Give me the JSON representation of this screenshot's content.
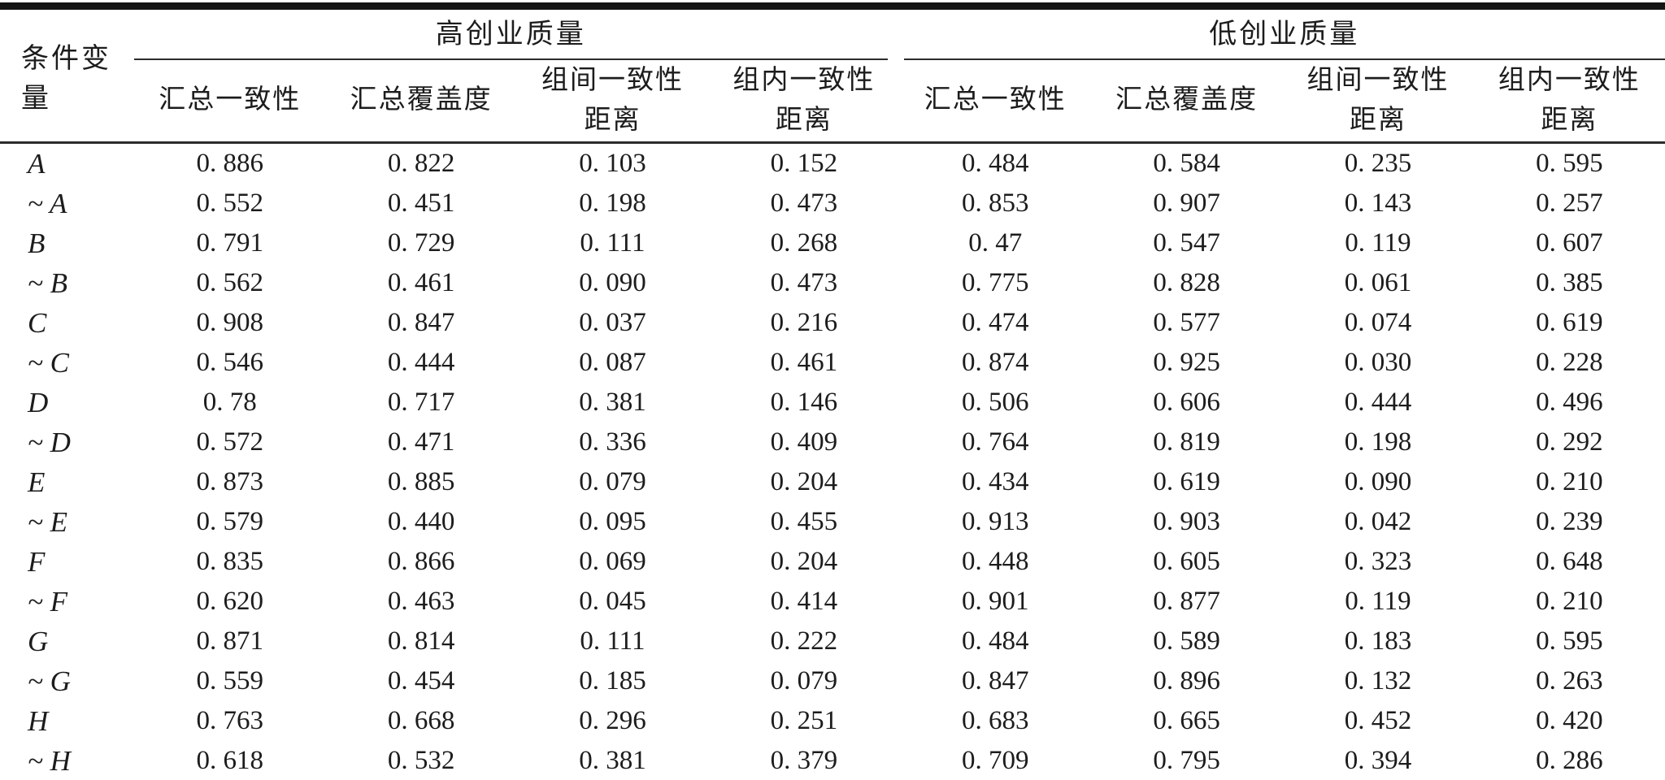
{
  "page": {
    "background": "#ffffff",
    "rule_color": "#151515",
    "text_color": "#1c1c1c"
  },
  "table": {
    "corner_header": "条件变量",
    "groups": [
      {
        "label": "高创业质量",
        "columns": [
          {
            "line1": "汇总一致性",
            "line2": ""
          },
          {
            "line1": "汇总覆盖度",
            "line2": ""
          },
          {
            "line1": "组间一致性",
            "line2": "距离"
          },
          {
            "line1": "组内一致性",
            "line2": "距离"
          }
        ]
      },
      {
        "label": "低创业质量",
        "columns": [
          {
            "line1": "汇总一致性",
            "line2": ""
          },
          {
            "line1": "汇总覆盖度",
            "line2": ""
          },
          {
            "line1": "组间一致性",
            "line2": "距离"
          },
          {
            "line1": "组内一致性",
            "line2": "距离"
          }
        ]
      }
    ],
    "rows": [
      {
        "label": "A",
        "values": [
          "0. 886",
          "0. 822",
          "0. 103",
          "0. 152",
          "0. 484",
          "0. 584",
          "0. 235",
          "0. 595"
        ]
      },
      {
        "label": "~ A",
        "values": [
          "0. 552",
          "0. 451",
          "0. 198",
          "0. 473",
          "0. 853",
          "0. 907",
          "0. 143",
          "0. 257"
        ]
      },
      {
        "label": "B",
        "values": [
          "0. 791",
          "0. 729",
          "0. 111",
          "0. 268",
          "0. 47",
          "0. 547",
          "0. 119",
          "0. 607"
        ]
      },
      {
        "label": "~ B",
        "values": [
          "0. 562",
          "0. 461",
          "0. 090",
          "0. 473",
          "0. 775",
          "0. 828",
          "0. 061",
          "0. 385"
        ]
      },
      {
        "label": "C",
        "values": [
          "0. 908",
          "0. 847",
          "0. 037",
          "0. 216",
          "0. 474",
          "0. 577",
          "0. 074",
          "0. 619"
        ]
      },
      {
        "label": "~ C",
        "values": [
          "0. 546",
          "0. 444",
          "0. 087",
          "0. 461",
          "0. 874",
          "0. 925",
          "0. 030",
          "0. 228"
        ]
      },
      {
        "label": "D",
        "values": [
          "0. 78",
          "0. 717",
          "0. 381",
          "0. 146",
          "0. 506",
          "0. 606",
          "0. 444",
          "0. 496"
        ]
      },
      {
        "label": "~ D",
        "values": [
          "0. 572",
          "0. 471",
          "0. 336",
          "0. 409",
          "0. 764",
          "0. 819",
          "0. 198",
          "0. 292"
        ]
      },
      {
        "label": "E",
        "values": [
          "0. 873",
          "0. 885",
          "0. 079",
          "0. 204",
          "0. 434",
          "0. 619",
          "0. 090",
          "0. 210"
        ]
      },
      {
        "label": "~ E",
        "values": [
          "0. 579",
          "0. 440",
          "0. 095",
          "0. 455",
          "0. 913",
          "0. 903",
          "0. 042",
          "0. 239"
        ]
      },
      {
        "label": "F",
        "values": [
          "0. 835",
          "0. 866",
          "0. 069",
          "0. 204",
          "0. 448",
          "0. 605",
          "0. 323",
          "0. 648"
        ]
      },
      {
        "label": "~ F",
        "values": [
          "0. 620",
          "0. 463",
          "0. 045",
          "0. 414",
          "0. 901",
          "0. 877",
          "0. 119",
          "0. 210"
        ]
      },
      {
        "label": "G",
        "values": [
          "0. 871",
          "0. 814",
          "0. 111",
          "0. 222",
          "0. 484",
          "0. 589",
          "0. 183",
          "0. 595"
        ]
      },
      {
        "label": "~ G",
        "values": [
          "0. 559",
          "0. 454",
          "0. 185",
          "0. 079",
          "0. 847",
          "0. 896",
          "0. 132",
          "0. 263"
        ]
      },
      {
        "label": "H",
        "values": [
          "0. 763",
          "0. 668",
          "0. 296",
          "0. 251",
          "0. 683",
          "0. 665",
          "0. 452",
          "0. 420"
        ]
      },
      {
        "label": "~ H",
        "values": [
          "0. 618",
          "0. 532",
          "0. 381",
          "0. 379",
          "0. 709",
          "0. 795",
          "0. 394",
          "0. 286"
        ]
      }
    ]
  }
}
